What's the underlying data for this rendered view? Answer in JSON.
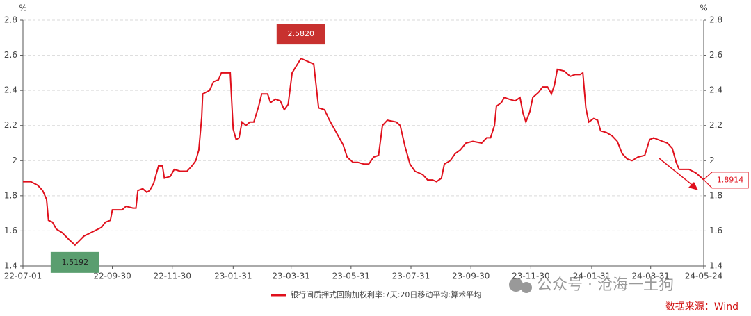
{
  "chart_data": {
    "type": "line",
    "y_unit": "%",
    "y2_unit": "%",
    "x": [
      "22-07-01",
      "22-07-09",
      "22-07-16",
      "22-07-21",
      "22-07-25",
      "22-07-27",
      "22-07-31",
      "22-08-04",
      "22-08-10",
      "22-08-17",
      "22-08-23",
      "22-09-01",
      "22-09-12",
      "22-09-19",
      "22-09-23",
      "22-09-28",
      "22-09-30",
      "22-10-10",
      "22-10-14",
      "22-10-21",
      "22-10-24",
      "22-10-26",
      "22-10-31",
      "22-11-04",
      "22-11-07",
      "22-11-11",
      "22-11-16",
      "22-11-20",
      "22-11-22",
      "22-11-28",
      "22-12-02",
      "22-12-08",
      "22-12-15",
      "22-12-20",
      "22-12-24",
      "22-12-27",
      "22-12-30",
      "22-12-31",
      "23-01-07",
      "23-01-11",
      "23-01-16",
      "23-01-19",
      "23-01-28",
      "23-01-31",
      "23-02-03",
      "23-02-06",
      "23-02-09",
      "23-02-13",
      "23-02-17",
      "23-02-21",
      "23-02-26",
      "23-03-01",
      "23-03-07",
      "23-03-10",
      "23-03-15",
      "23-03-20",
      "23-03-24",
      "23-03-28",
      "23-04-01",
      "23-04-10",
      "23-04-23",
      "23-04-28",
      "23-05-04",
      "23-05-09",
      "23-05-13",
      "23-05-18",
      "23-05-23",
      "23-05-27",
      "23-06-02",
      "23-06-07",
      "23-06-13",
      "23-06-18",
      "23-06-23",
      "23-06-28",
      "23-07-02",
      "23-07-07",
      "23-07-16",
      "23-07-20",
      "23-07-25",
      "23-07-30",
      "23-08-04",
      "23-08-12",
      "23-08-17",
      "23-08-22",
      "23-08-26",
      "23-08-31",
      "23-09-03",
      "23-09-09",
      "23-09-14",
      "23-09-19",
      "23-09-25",
      "23-10-02",
      "23-10-11",
      "23-10-16",
      "23-10-20",
      "23-10-24",
      "23-10-26",
      "23-10-31",
      "23-11-03",
      "23-11-08",
      "23-11-14",
      "23-11-19",
      "23-11-22",
      "23-11-25",
      "23-11-29",
      "23-12-02",
      "23-12-08",
      "23-12-12",
      "23-12-17",
      "23-12-21",
      "23-12-24",
      "23-12-27",
      "24-01-03",
      "24-01-09",
      "24-01-14",
      "24-01-19",
      "24-01-22",
      "24-01-25",
      "24-01-28",
      "24-02-02",
      "24-02-06",
      "24-02-09",
      "24-02-15",
      "24-02-21",
      "24-02-26",
      "24-03-02",
      "24-03-07",
      "24-03-12",
      "24-03-18",
      "24-03-25",
      "24-03-30",
      "24-04-03",
      "24-04-12",
      "24-04-17",
      "24-04-22",
      "24-04-26",
      "24-04-29",
      "24-05-09",
      "24-05-16",
      "24-05-24"
    ],
    "series": [
      {
        "name": "银行间质押式回购加权利率:7天:20日移动平均:算术平均",
        "color": "#e0101c",
        "values": [
          1.88,
          1.88,
          1.86,
          1.83,
          1.78,
          1.66,
          1.65,
          1.61,
          1.59,
          1.55,
          1.5192,
          1.57,
          1.6,
          1.62,
          1.65,
          1.66,
          1.72,
          1.72,
          1.74,
          1.73,
          1.73,
          1.83,
          1.84,
          1.82,
          1.83,
          1.87,
          1.97,
          1.97,
          1.9,
          1.91,
          1.95,
          1.94,
          1.94,
          1.97,
          2.0,
          2.06,
          2.25,
          2.38,
          2.4,
          2.45,
          2.46,
          2.5,
          2.5,
          2.18,
          2.12,
          2.13,
          2.22,
          2.2,
          2.22,
          2.22,
          2.31,
          2.38,
          2.38,
          2.33,
          2.35,
          2.34,
          2.29,
          2.32,
          2.5,
          2.582,
          2.55,
          2.3,
          2.29,
          2.23,
          2.19,
          2.14,
          2.09,
          2.02,
          1.99,
          1.99,
          1.98,
          1.98,
          2.02,
          2.03,
          2.2,
          2.23,
          2.22,
          2.2,
          2.08,
          1.98,
          1.94,
          1.92,
          1.89,
          1.89,
          1.88,
          1.9,
          1.98,
          2.0,
          2.04,
          2.06,
          2.1,
          2.11,
          2.1,
          2.13,
          2.13,
          2.2,
          2.31,
          2.33,
          2.36,
          2.35,
          2.34,
          2.36,
          2.27,
          2.22,
          2.28,
          2.36,
          2.39,
          2.42,
          2.42,
          2.38,
          2.43,
          2.52,
          2.51,
          2.48,
          2.49,
          2.49,
          2.5,
          2.3,
          2.22,
          2.24,
          2.23,
          2.17,
          2.16,
          2.14,
          2.11,
          2.04,
          2.01,
          2.0,
          2.02,
          2.03,
          2.12,
          2.13,
          2.11,
          2.1,
          2.07,
          1.99,
          1.95,
          1.95,
          1.93,
          1.8914
        ]
      }
    ],
    "xlim": [
      "22-07-01",
      "24-05-24"
    ],
    "xticks": [
      "22-07-01",
      "22-09-30",
      "22-11-30",
      "23-01-31",
      "23-03-31",
      "23-05-31",
      "23-07-31",
      "23-09-30",
      "23-11-30",
      "24-01-31",
      "24-03-31",
      "24-05-24"
    ],
    "ylim": [
      1.4,
      2.8
    ],
    "yticks": [
      1.4,
      1.6,
      1.8,
      2,
      2.2,
      2.4,
      2.6,
      2.8
    ],
    "y2lim": [
      1.4,
      2.8
    ],
    "y2ticks": [
      1.4,
      1.6,
      1.8,
      2,
      2.2,
      2.4,
      2.6,
      2.8
    ],
    "grid": true,
    "annotations": [
      {
        "x": "22-08-23",
        "value": 1.5192,
        "color": "#5a9e6f",
        "style": "min"
      },
      {
        "x": "23-04-10",
        "value": 2.582,
        "label": "2.5820",
        "color": "#c8312f",
        "style": "max"
      },
      {
        "x": "24-05-24",
        "value": 1.8914,
        "color": "#e0101c",
        "style": "last"
      }
    ],
    "watermark": "公众号 · 沧海一土狗",
    "source": "数据来源：Wind"
  }
}
